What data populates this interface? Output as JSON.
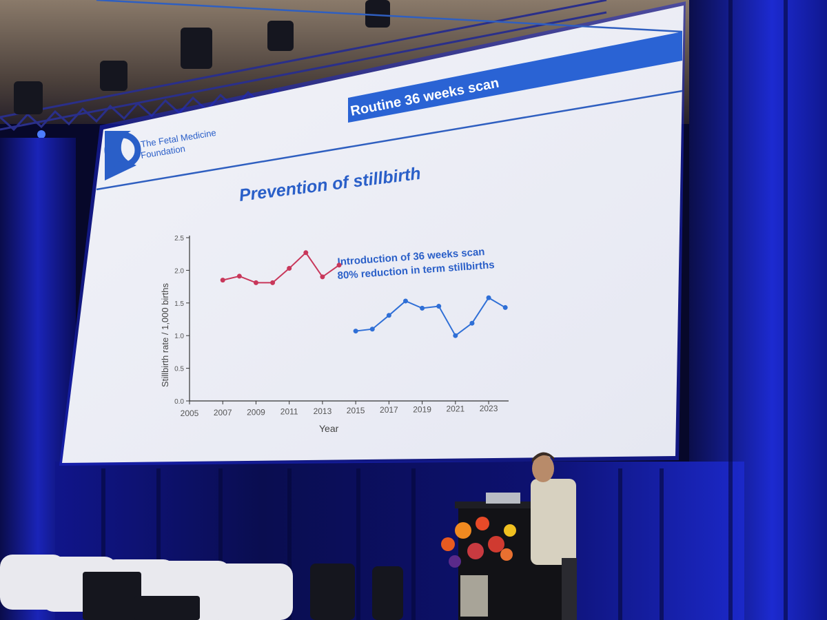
{
  "slide": {
    "banner_title": "Routine 36 weeks scan",
    "logo_text_line1": "The Fetal Medicine",
    "logo_text_line2": "Foundation",
    "heading": "Prevention of stillbirth",
    "annotation_line1": "Introduction of 36 weeks scan",
    "annotation_line2": "80% reduction in term stillbirths"
  },
  "chart_data": {
    "type": "line",
    "title": "",
    "xlabel": "Year",
    "ylabel": "Stillbirth rate / 1,000 births",
    "xlim": [
      2005,
      2023.5
    ],
    "ylim": [
      0,
      2.5
    ],
    "x_ticks": [
      "2005",
      "2007",
      "2009",
      "2011",
      "2013",
      "2015",
      "2017",
      "2019",
      "2021",
      "2023"
    ],
    "y_ticks": [
      "0.0",
      "0.5",
      "1.0",
      "1.5",
      "2.0",
      "2.5"
    ],
    "series": [
      {
        "color": "#c8375a",
        "points": [
          {
            "x": 2007,
            "y": 1.85
          },
          {
            "x": 2008,
            "y": 1.91
          },
          {
            "x": 2009,
            "y": 1.81
          },
          {
            "x": 2010,
            "y": 1.81
          },
          {
            "x": 2011,
            "y": 2.03
          },
          {
            "x": 2012,
            "y": 2.27
          },
          {
            "x": 2013,
            "y": 1.9
          },
          {
            "x": 2014,
            "y": 2.08
          }
        ]
      },
      {
        "color": "#2f6fd6",
        "points": [
          {
            "x": 2015,
            "y": 1.07
          },
          {
            "x": 2016,
            "y": 1.1
          },
          {
            "x": 2017,
            "y": 1.31
          },
          {
            "x": 2018,
            "y": 1.53
          },
          {
            "x": 2019,
            "y": 1.42
          },
          {
            "x": 2020,
            "y": 1.45
          },
          {
            "x": 2021,
            "y": 1.0
          },
          {
            "x": 2022,
            "y": 1.19
          },
          {
            "x": 2023,
            "y": 1.58
          },
          {
            "x": 2024,
            "y": 1.43
          }
        ]
      }
    ]
  }
}
